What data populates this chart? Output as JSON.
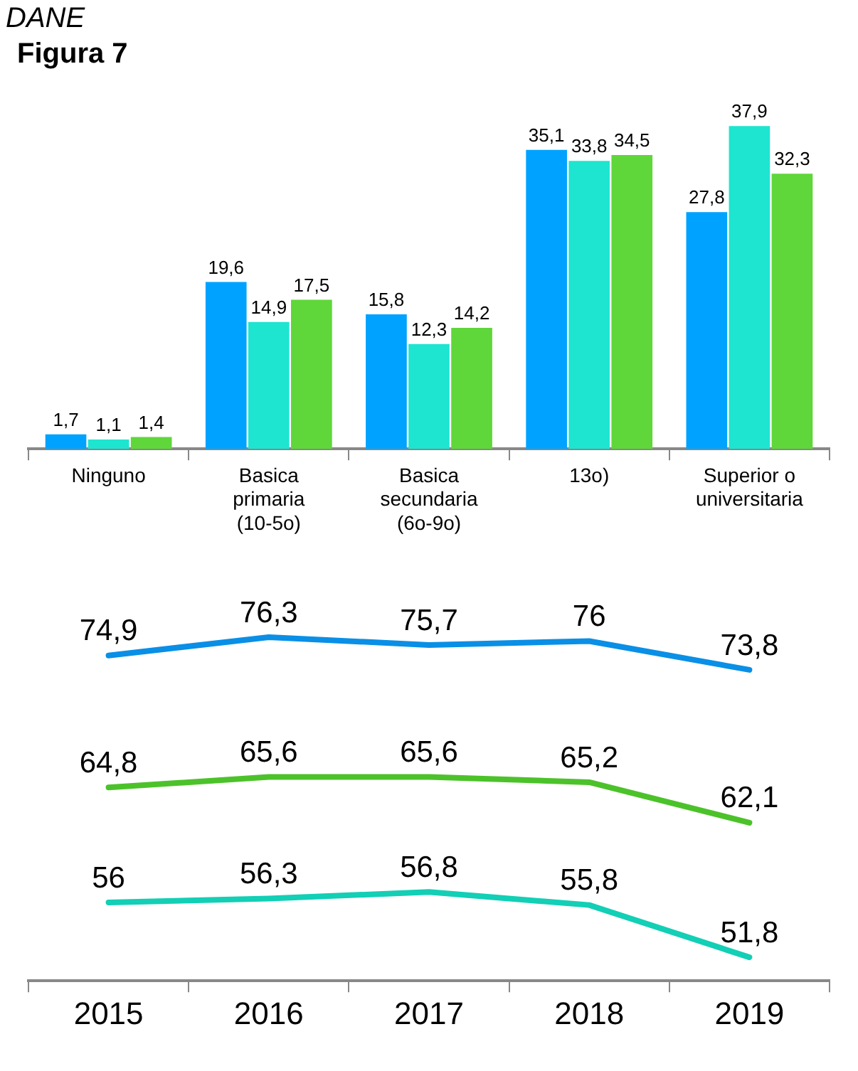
{
  "chart_data": [
    {
      "type": "bar",
      "title": "Figura 7",
      "annotations": [
        "DANE"
      ],
      "categories": [
        "Ninguno",
        "Basica primaria (10-5o)",
        "Basica secundaria (6o-9o)",
        "13o)",
        "Superior o universitaria"
      ],
      "series": [
        {
          "color": "#00a2ff",
          "values": [
            1.7,
            19.6,
            15.8,
            35.1,
            27.8
          ],
          "value_labels": [
            "1,7",
            "19,6",
            "15,8",
            "35,1",
            "27,8"
          ]
        },
        {
          "color": "#1de5d0",
          "values": [
            1.1,
            14.9,
            12.3,
            33.8,
            37.9
          ],
          "value_labels": [
            "1,1",
            "14,9",
            "12,3",
            "33,8",
            "37,9"
          ]
        },
        {
          "color": "#5fd63a",
          "values": [
            1.4,
            17.5,
            14.2,
            34.5,
            32.3
          ],
          "value_labels": [
            "1,4",
            "17,5",
            "14,2",
            "34,5",
            "32,3"
          ]
        }
      ],
      "tick_labels": "x",
      "grid": false,
      "legend": false
    },
    {
      "type": "line",
      "categories": [
        "2015",
        "2016",
        "2017",
        "2018",
        "2019"
      ],
      "series": [
        {
          "color": "#0a8fe6",
          "values": [
            74.9,
            76.3,
            75.7,
            76,
            73.8
          ],
          "value_labels": [
            "74,9",
            "76,3",
            "75,7",
            "76",
            "73,8"
          ]
        },
        {
          "color": "#4cc22a",
          "values": [
            64.8,
            65.6,
            65.6,
            65.2,
            62.1
          ],
          "value_labels": [
            "64,8",
            "65,6",
            "65,6",
            "65,2",
            "62,1"
          ]
        },
        {
          "color": "#12cfb5",
          "values": [
            56,
            56.3,
            56.8,
            55.8,
            51.8
          ],
          "value_labels": [
            "56",
            "56,3",
            "56,8",
            "55,8",
            "51,8"
          ]
        }
      ],
      "tick_labels": "x",
      "grid": false,
      "legend": false,
      "marker": "none",
      "line_style": "solid"
    }
  ]
}
